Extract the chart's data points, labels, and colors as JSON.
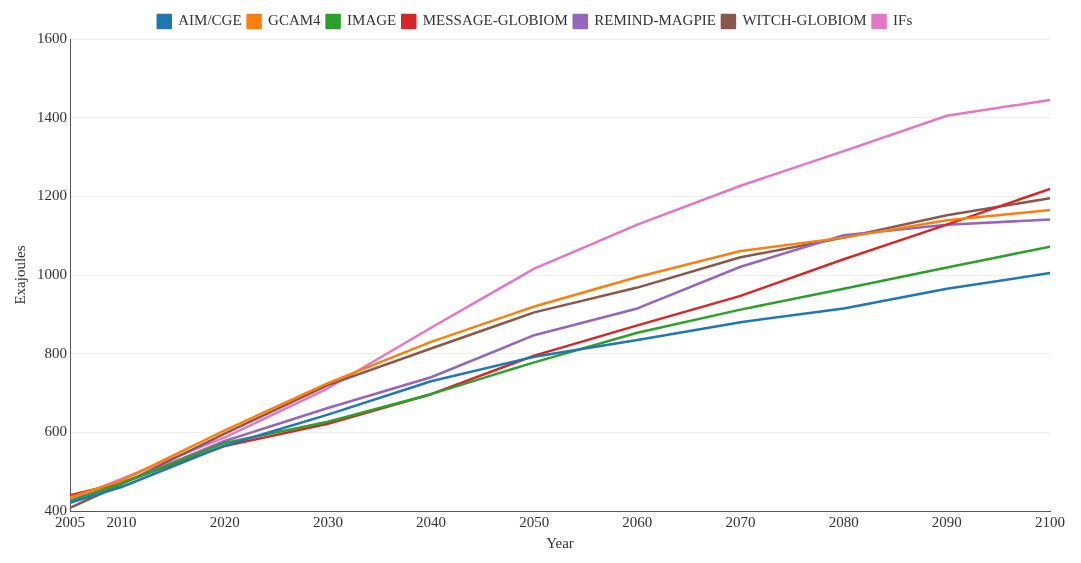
{
  "chart_data": {
    "type": "line",
    "xlabel": "Year",
    "ylabel": "Exajoules",
    "x": [
      2005,
      2010,
      2020,
      2030,
      2040,
      2050,
      2060,
      2070,
      2080,
      2090,
      2100
    ],
    "series": [
      {
        "name": "AIM/CGE",
        "color": "#1f77b4",
        "values": [
          421,
          461,
          566,
          645,
          730,
          792,
          835,
          880,
          915,
          965,
          1005
        ]
      },
      {
        "name": "GCAM4",
        "color": "#ff7f0e",
        "values": [
          435,
          477,
          605,
          725,
          830,
          920,
          995,
          1061,
          1095,
          1139,
          1165
        ]
      },
      {
        "name": "IMAGE",
        "color": "#2ca02c",
        "values": [
          425,
          470,
          573,
          627,
          697,
          778,
          853,
          912,
          965,
          1019,
          1072
        ]
      },
      {
        "name": "MESSAGE-GLOBIOM",
        "color": "#d62728",
        "values": [
          440,
          472,
          565,
          622,
          697,
          795,
          872,
          947,
          1040,
          1128,
          1219
        ]
      },
      {
        "name": "REMIND-MAGPIE",
        "color": "#9467bd",
        "values": [
          425,
          470,
          578,
          662,
          740,
          847,
          915,
          1021,
          1101,
          1128,
          1141
        ]
      },
      {
        "name": "WITCH-GLOBIOM",
        "color": "#8c564b",
        "values": [
          408,
          468,
          597,
          720,
          813,
          905,
          968,
          1045,
          1095,
          1152,
          1195
        ]
      },
      {
        "name": "IFs",
        "color": "#e377c2",
        "values": [
          429,
          null,
          587,
          712,
          866,
          1016,
          1128,
          1227,
          1315,
          1405,
          1445
        ]
      }
    ],
    "xlim": [
      2005,
      2100
    ],
    "xticks": [
      2005,
      2010,
      2020,
      2030,
      2040,
      2050,
      2060,
      2070,
      2080,
      2090,
      2100
    ],
    "ylim": [
      400,
      1600
    ],
    "yticks": [
      400,
      600,
      800,
      1000,
      1200,
      1400,
      1600
    ],
    "grid": "y",
    "legend": "top",
    "marker": "none",
    "line_style": "solid"
  }
}
